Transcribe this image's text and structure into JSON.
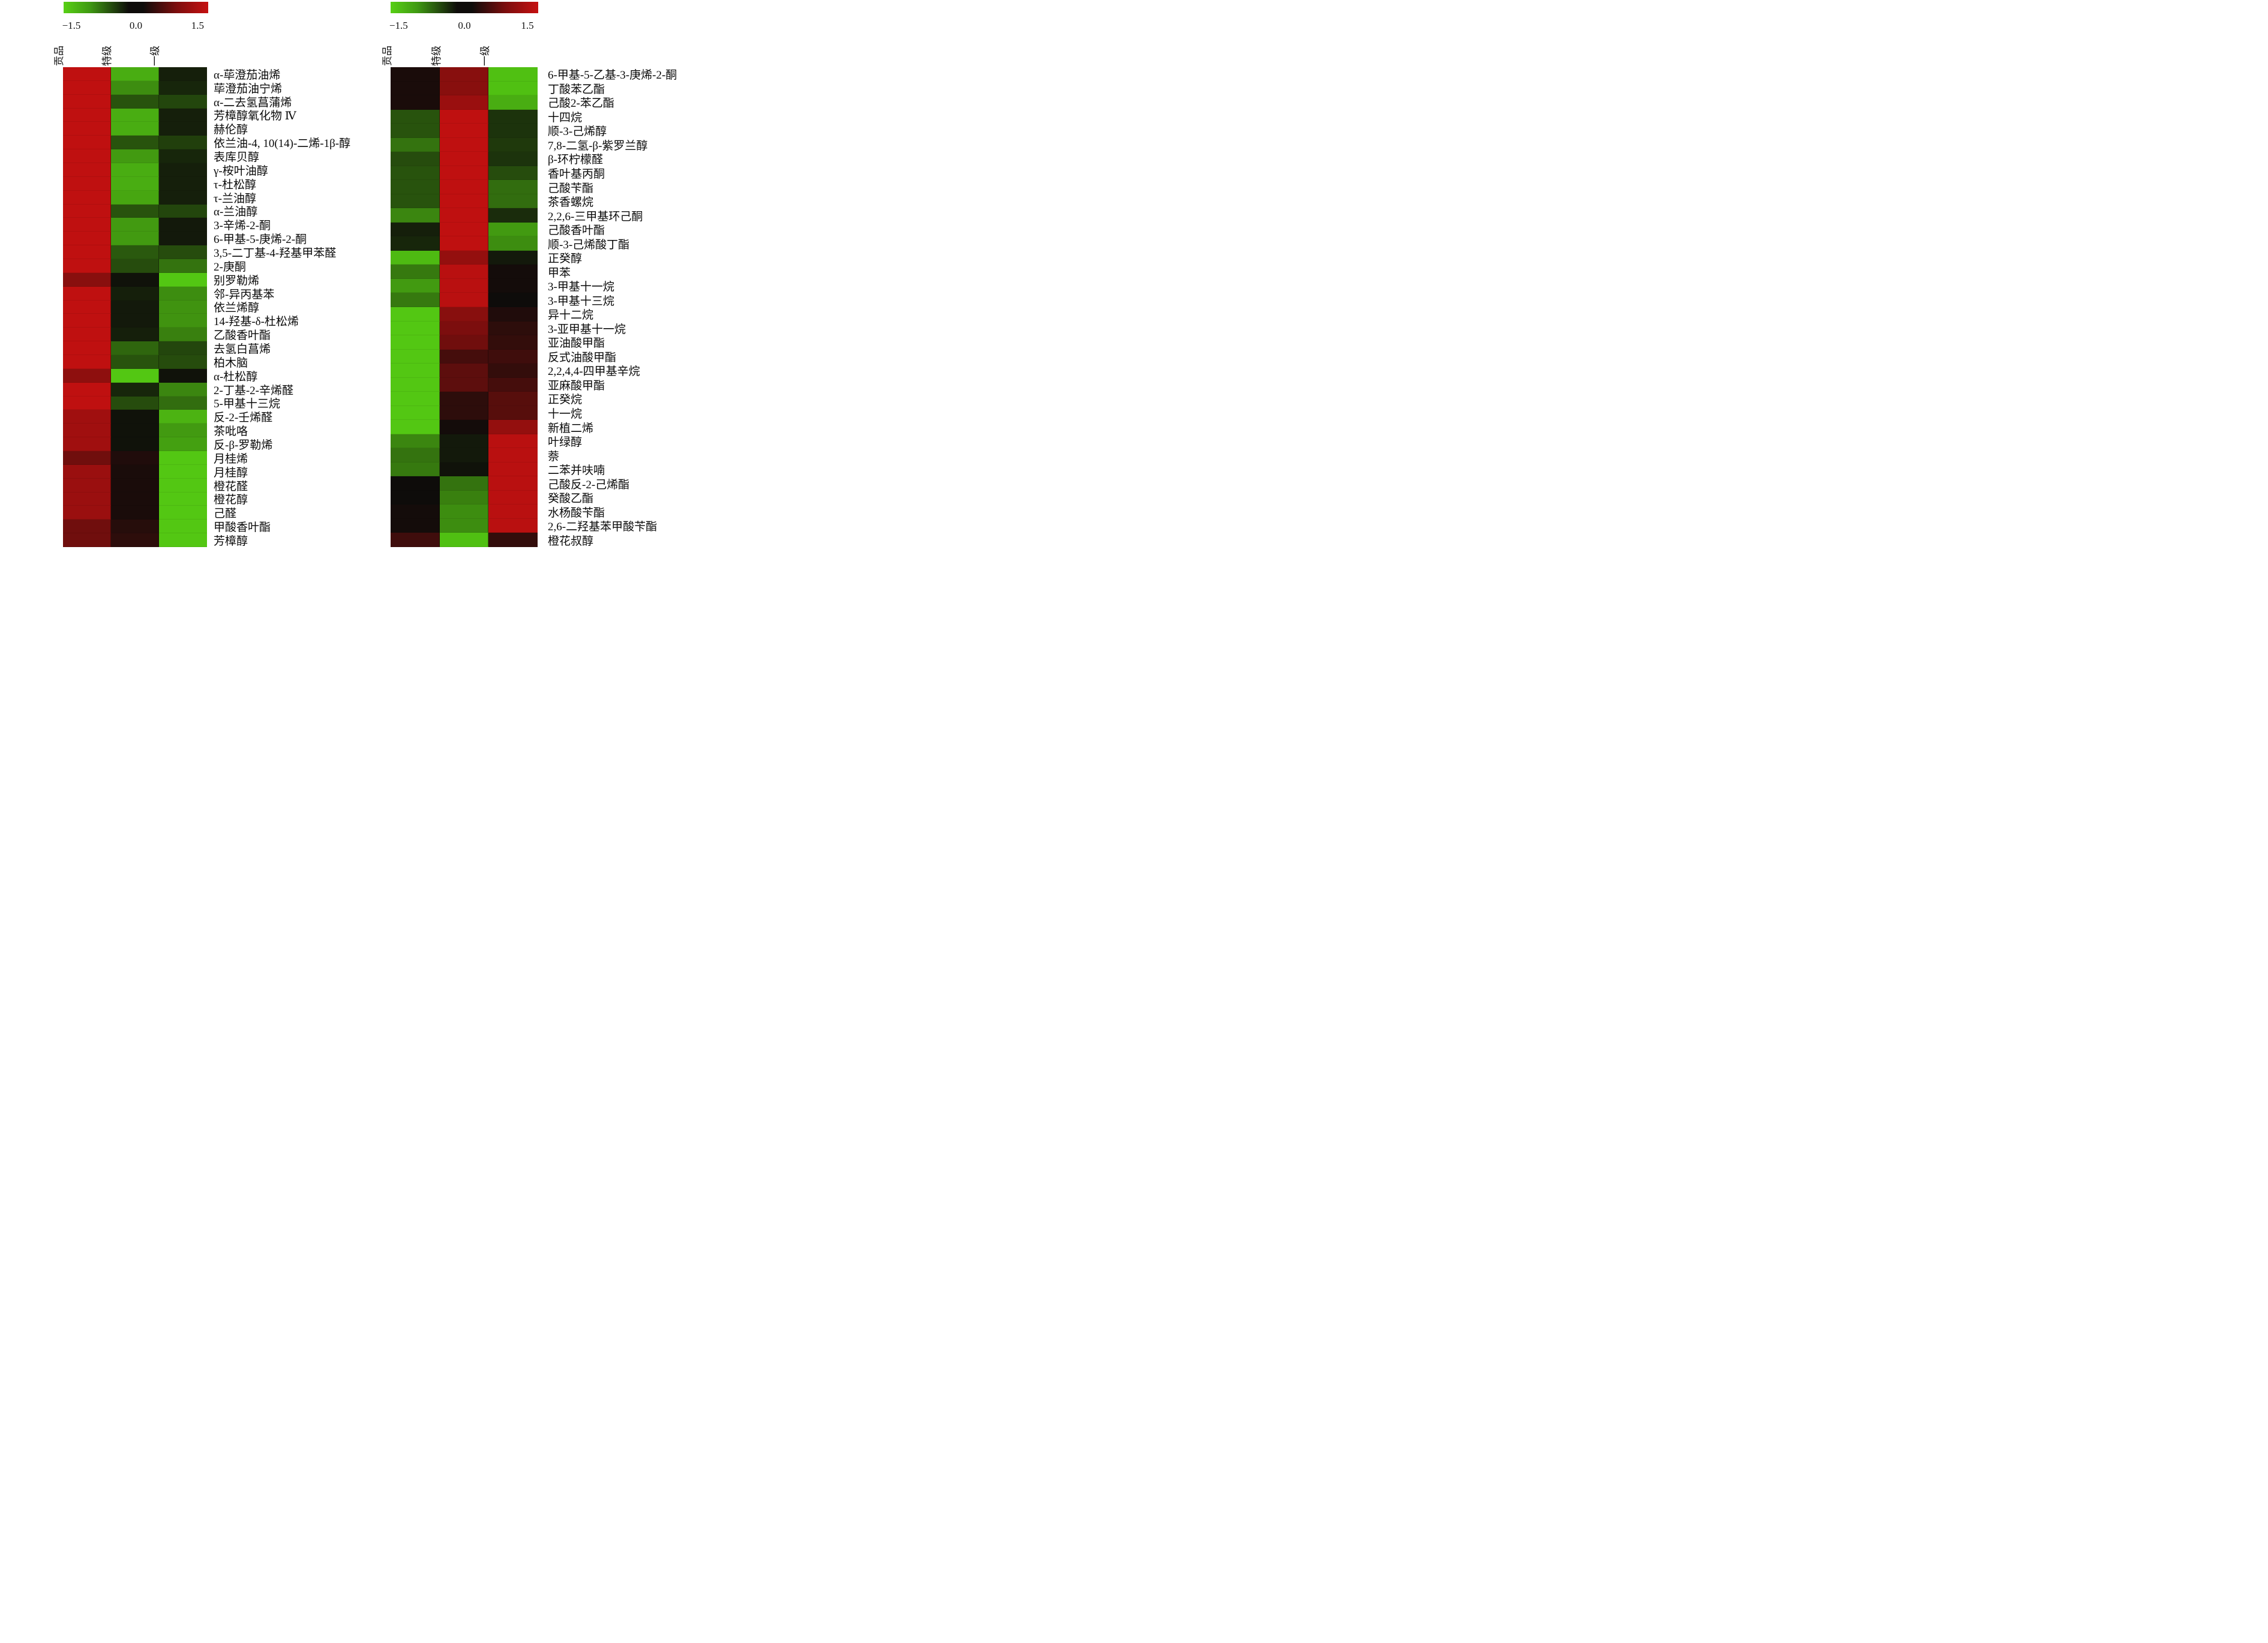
{
  "page": {
    "background": "#ffffff"
  },
  "chart_data": [
    {
      "type": "heatmap",
      "panel": "left",
      "columns": [
        "贡品",
        "特级",
        "一级"
      ],
      "colorbar": {
        "ticks": [
          "−1.5",
          "0.0",
          "1.5"
        ],
        "min": -1.5,
        "max": 1.5
      },
      "colors": {
        "low": "#55cd13",
        "mid": "#0e0c0a",
        "high": "#c51010"
      },
      "legend_position": "top",
      "rows": [
        {
          "label": "α-荜澄茄油烯",
          "values": [
            1.45,
            -1.25,
            -0.15
          ]
        },
        {
          "label": "荜澄茄油宁烯",
          "values": [
            1.45,
            -1.0,
            -0.2
          ]
        },
        {
          "label": "α-二去氢菖蒲烯",
          "values": [
            1.45,
            -0.55,
            -0.45
          ]
        },
        {
          "label": "芳樟醇氧化物 Ⅳ",
          "values": [
            1.45,
            -1.25,
            -0.15
          ]
        },
        {
          "label": "赫伦醇",
          "values": [
            1.45,
            -1.25,
            -0.15
          ]
        },
        {
          "label": "依兰油-4, 10(14)-二烯-1β-醇",
          "values": [
            1.45,
            -0.55,
            -0.4
          ]
        },
        {
          "label": "表库贝醇",
          "values": [
            1.45,
            -1.1,
            -0.2
          ]
        },
        {
          "label": "γ-桉叶油醇",
          "values": [
            1.45,
            -1.25,
            -0.15
          ]
        },
        {
          "label": "τ-杜松醇",
          "values": [
            1.45,
            -1.25,
            -0.15
          ]
        },
        {
          "label": "τ-兰油醇",
          "values": [
            1.45,
            -1.2,
            -0.15
          ]
        },
        {
          "label": "α-兰油醇",
          "values": [
            1.45,
            -0.55,
            -0.45
          ]
        },
        {
          "label": "3-辛烯-2-酮",
          "values": [
            1.45,
            -1.1,
            -0.1
          ]
        },
        {
          "label": "6-甲基-5-庚烯-2-酮",
          "values": [
            1.45,
            -1.1,
            -0.1
          ]
        },
        {
          "label": "3,5-二丁基-4-羟基甲苯醛",
          "values": [
            1.45,
            -0.6,
            -0.5
          ]
        },
        {
          "label": "2-庚酮",
          "values": [
            1.45,
            -0.5,
            -0.8
          ]
        },
        {
          "label": "别罗勒烯",
          "values": [
            1.0,
            -0.05,
            -1.45
          ]
        },
        {
          "label": "邻-异丙基苯",
          "values": [
            1.45,
            -0.15,
            -1.0
          ]
        },
        {
          "label": "依兰烯醇",
          "values": [
            1.45,
            -0.1,
            -1.05
          ]
        },
        {
          "label": "14-羟基-δ-杜松烯",
          "values": [
            1.45,
            -0.1,
            -1.05
          ]
        },
        {
          "label": "乙酸香叶酯",
          "values": [
            1.45,
            -0.15,
            -0.9
          ]
        },
        {
          "label": "去氢白菖烯",
          "values": [
            1.45,
            -0.7,
            -0.45
          ]
        },
        {
          "label": "柏木脑",
          "values": [
            1.45,
            -0.55,
            -0.5
          ]
        },
        {
          "label": "α-杜松醇",
          "values": [
            1.05,
            -1.45,
            -0.05
          ]
        },
        {
          "label": "2-丁基-2-辛烯醛",
          "values": [
            1.45,
            -0.2,
            -0.95
          ]
        },
        {
          "label": "5-甲基十三烷",
          "values": [
            1.45,
            -0.5,
            -0.75
          ]
        },
        {
          "label": "反-2-壬烯醛",
          "values": [
            1.2,
            -0.05,
            -1.3
          ]
        },
        {
          "label": "茶吡咯",
          "values": [
            1.2,
            -0.05,
            -1.1
          ]
        },
        {
          "label": "反-β-罗勒烯",
          "values": [
            1.2,
            -0.05,
            -1.15
          ]
        },
        {
          "label": "月桂烯",
          "values": [
            0.8,
            0.15,
            -1.45
          ]
        },
        {
          "label": "月桂醇",
          "values": [
            1.15,
            0.1,
            -1.45
          ]
        },
        {
          "label": "橙花醛",
          "values": [
            1.15,
            0.1,
            -1.45
          ]
        },
        {
          "label": "橙花醇",
          "values": [
            1.15,
            0.1,
            -1.45
          ]
        },
        {
          "label": "己醛",
          "values": [
            1.15,
            0.1,
            -1.45
          ]
        },
        {
          "label": "甲酸香叶酯",
          "values": [
            0.8,
            0.2,
            -1.45
          ]
        },
        {
          "label": "芳樟醇",
          "values": [
            0.8,
            0.25,
            -1.45
          ]
        }
      ]
    },
    {
      "type": "heatmap",
      "panel": "right",
      "columns": [
        "贡品",
        "特级",
        "一级"
      ],
      "colorbar": {
        "ticks": [
          "−1.5",
          "0.0",
          "1.5"
        ],
        "min": -1.5,
        "max": 1.5
      },
      "colors": {
        "low": "#55cd13",
        "mid": "#0e0c0a",
        "high": "#c51010"
      },
      "legend_position": "top",
      "rows": [
        {
          "label": "6-甲基-5-乙基-3-庚烯-2-酮",
          "values": [
            0.1,
            1.0,
            -1.4
          ]
        },
        {
          "label": "丁酸苯乙酯",
          "values": [
            0.1,
            1.0,
            -1.4
          ]
        },
        {
          "label": "己酸2-苯乙酯",
          "values": [
            0.1,
            1.15,
            -1.25
          ]
        },
        {
          "label": "十四烷",
          "values": [
            -0.55,
            1.45,
            -0.3
          ]
        },
        {
          "label": "顺-3-己烯醇",
          "values": [
            -0.55,
            1.45,
            -0.3
          ]
        },
        {
          "label": "7,8-二氢-β-紫罗兰醇",
          "values": [
            -0.8,
            1.45,
            -0.35
          ]
        },
        {
          "label": "β-环柠檬醛",
          "values": [
            -0.5,
            1.45,
            -0.3
          ]
        },
        {
          "label": "香叶基丙酮",
          "values": [
            -0.55,
            1.45,
            -0.5
          ]
        },
        {
          "label": "己酸苄酯",
          "values": [
            -0.55,
            1.45,
            -0.75
          ]
        },
        {
          "label": "茶香螺烷",
          "values": [
            -0.55,
            1.45,
            -0.75
          ]
        },
        {
          "label": "2,2,6-三甲基环己酮",
          "values": [
            -0.95,
            1.45,
            -0.25
          ]
        },
        {
          "label": "己酸香叶酯",
          "values": [
            -0.15,
            1.45,
            -1.1
          ]
        },
        {
          "label": "顺-3-己烯酸丁酯",
          "values": [
            -0.2,
            1.45,
            -1.0
          ]
        },
        {
          "label": "正癸醇",
          "values": [
            -1.35,
            1.1,
            -0.1
          ]
        },
        {
          "label": "甲苯",
          "values": [
            -0.85,
            1.4,
            0.05
          ]
        },
        {
          "label": "3-甲基十一烷",
          "values": [
            -1.1,
            1.4,
            0.05
          ]
        },
        {
          "label": "3-甲基十三烷",
          "values": [
            -0.85,
            1.4,
            0.0
          ]
        },
        {
          "label": "异十二烷",
          "values": [
            -1.45,
            1.0,
            0.15
          ]
        },
        {
          "label": "3-亚甲基十一烷",
          "values": [
            -1.45,
            0.9,
            0.25
          ]
        },
        {
          "label": "亚油酸甲酯",
          "values": [
            -1.45,
            0.8,
            0.3
          ]
        },
        {
          "label": "反式油酸甲酯",
          "values": [
            -1.45,
            0.45,
            0.4
          ]
        },
        {
          "label": "2,2,4,4-四甲基辛烷",
          "values": [
            -1.45,
            0.65,
            0.3
          ]
        },
        {
          "label": "亚麻酸甲酯",
          "values": [
            -1.45,
            0.65,
            0.45
          ]
        },
        {
          "label": "正癸烷",
          "values": [
            -1.45,
            0.25,
            0.6
          ]
        },
        {
          "label": "十一烷",
          "values": [
            -1.45,
            0.25,
            0.6
          ]
        },
        {
          "label": "新植二烯",
          "values": [
            -1.45,
            0.05,
            1.1
          ]
        },
        {
          "label": "叶绿醇",
          "values": [
            -0.95,
            -0.1,
            1.4
          ]
        },
        {
          "label": "萘",
          "values": [
            -0.8,
            -0.1,
            1.4
          ]
        },
        {
          "label": "二苯并呋喃",
          "values": [
            -0.85,
            -0.05,
            1.4
          ]
        },
        {
          "label": "己酸反-2-己烯酯",
          "values": [
            0.0,
            -0.8,
            1.4
          ]
        },
        {
          "label": "癸酸乙酯",
          "values": [
            0.0,
            -0.9,
            1.4
          ]
        },
        {
          "label": "水杨酸苄酯",
          "values": [
            0.05,
            -1.0,
            1.4
          ]
        },
        {
          "label": "2,6-二羟基苯甲酸苄酯",
          "values": [
            0.05,
            -1.0,
            1.4
          ]
        },
        {
          "label": "橙花叔醇",
          "values": [
            0.4,
            -1.4,
            0.3
          ]
        }
      ]
    }
  ]
}
